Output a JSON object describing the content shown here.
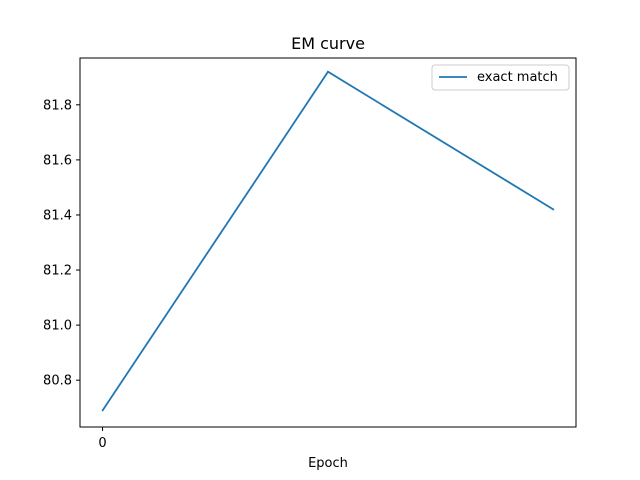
{
  "chart_data": {
    "type": "line",
    "title": "EM curve",
    "xlabel": "Epoch",
    "ylabel": "",
    "x": [
      0,
      1,
      2
    ],
    "x_tick_values": [
      0
    ],
    "x_tick_labels": [
      "0"
    ],
    "y_ticks": [
      80.8,
      81.0,
      81.2,
      81.4,
      81.6,
      81.8
    ],
    "y_tick_labels": [
      "80.8",
      "81.0",
      "81.2",
      "81.4",
      "81.6",
      "81.8"
    ],
    "xlim": [
      -0.1,
      2.1
    ],
    "ylim": [
      80.63,
      81.97
    ],
    "grid": false,
    "legend_position": "top-right",
    "series": [
      {
        "name": "exact match",
        "color": "#1f77b4",
        "values": [
          80.69,
          81.92,
          81.42
        ]
      }
    ]
  }
}
